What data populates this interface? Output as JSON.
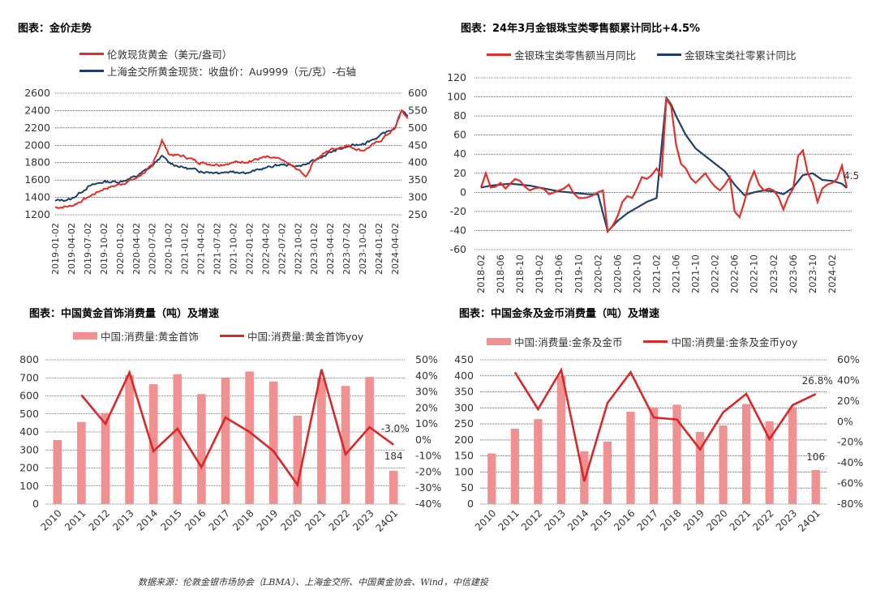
{
  "colors": {
    "red": "#e0302a",
    "blue": "#1f3f6b",
    "bar": "#f09090",
    "barline": "#d8282a",
    "grid": "#000000"
  },
  "footer": "数据来源：伦敦金银市场协会（LBMA）、上海金交所、中国黄金协会、Wind，中信建投",
  "chart_data": [
    {
      "type": "line",
      "title": "图表：金价走势",
      "x_ticks": [
        "2019-01-02",
        "2019-04-02",
        "2019-07-02",
        "2019-10-02",
        "2020-01-02",
        "2020-04-02",
        "2020-07-02",
        "2020-10-02",
        "2021-01-02",
        "2021-04-02",
        "2021-07-02",
        "2021-10-02",
        "2022-01-02",
        "2022-04-02",
        "2022-07-02",
        "2022-10-02",
        "2023-01-02",
        "2023-04-02",
        "2023-07-02",
        "2023-10-02",
        "2024-01-02",
        "2024-04-02"
      ],
      "ylim_left": [
        1200,
        2600
      ],
      "yticks_left": [
        "1200",
        "1400",
        "1600",
        "1800",
        "2000",
        "2200",
        "2400",
        "2600"
      ],
      "ylim_right": [
        250,
        600
      ],
      "yticks_right": [
        "250",
        "300",
        "350",
        "400",
        "450",
        "500",
        "550",
        "600"
      ],
      "series": [
        {
          "name": "伦敦现货黄金（美元/盎司）",
          "axis": "left",
          "color": "#e0302a",
          "x": [
            0,
            1,
            2,
            3,
            4,
            5,
            6,
            6.6,
            7,
            8,
            9,
            10,
            11,
            12,
            13,
            14,
            15,
            15.5,
            16,
            17,
            18,
            19,
            20,
            21,
            21.4,
            21.6,
            21.8
          ],
          "values": [
            1285,
            1300,
            1400,
            1500,
            1550,
            1620,
            1760,
            2060,
            1900,
            1870,
            1800,
            1780,
            1800,
            1820,
            1860,
            1830,
            1720,
            1640,
            1830,
            1950,
            2000,
            1940,
            2040,
            2200,
            2400,
            2350,
            2310
          ]
        },
        {
          "name": "上海金交所黄金现货：收盘价：Au9999（元/克）-右轴",
          "axis": "right",
          "color": "#1f3f6b",
          "x": [
            0,
            1,
            2,
            3,
            4,
            5,
            6,
            6.6,
            7,
            8,
            9,
            10,
            11,
            12,
            13,
            14,
            15,
            15.5,
            16,
            17,
            18,
            19,
            20,
            21,
            21.4,
            21.6,
            21.8
          ],
          "values": [
            290,
            295,
            330,
            345,
            345,
            360,
            390,
            420,
            400,
            385,
            375,
            372,
            375,
            372,
            385,
            395,
            390,
            395,
            405,
            430,
            445,
            455,
            475,
            500,
            550,
            545,
            535
          ]
        }
      ]
    },
    {
      "type": "line",
      "title": "图表：24年3月金银珠宝类零售额累计同比+4.5%",
      "x_ticks": [
        "2018-02",
        "2018-06",
        "2018-10",
        "2019-02",
        "2019-06",
        "2019-10",
        "2020-02",
        "2020-06",
        "2020-10",
        "2021-02",
        "2021-06",
        "2021-10",
        "2022-02",
        "2022-06",
        "2022-10",
        "2023-02",
        "2023-06",
        "2023-10",
        "2024-02"
      ],
      "ylim": [
        -60,
        120
      ],
      "yticks": [
        "-60",
        "-40",
        "-20",
        "0",
        "20",
        "40",
        "60",
        "80",
        "100",
        "120"
      ],
      "annotation": "4.5",
      "series": [
        {
          "name": "金银珠宝类零售额当月同比",
          "color": "#e0302a",
          "x": [
            0,
            1,
            2,
            3,
            4,
            5,
            6,
            7,
            8,
            9,
            10,
            11,
            12,
            13,
            14,
            15,
            16,
            17,
            18,
            19,
            20,
            21,
            22,
            23,
            24,
            25,
            26,
            27,
            28,
            29,
            30,
            31,
            32,
            33,
            34,
            35,
            36,
            37,
            38,
            39,
            40,
            41,
            42,
            43,
            44,
            45,
            46,
            47,
            48,
            49,
            50,
            51,
            52,
            53,
            54,
            55,
            56,
            57,
            58,
            59,
            60,
            61,
            62,
            63,
            64,
            65,
            66,
            67,
            68,
            69,
            70,
            71,
            72,
            73,
            74,
            75
          ],
          "values": [
            5,
            20,
            5,
            6,
            10,
            4,
            9,
            14,
            12,
            6,
            2,
            4,
            5,
            3,
            -2,
            0,
            2,
            4,
            8,
            -1,
            -6,
            -6,
            -5,
            -3,
            0,
            2,
            -41,
            -35,
            -25,
            -10,
            -4,
            -6,
            4,
            16,
            14,
            18,
            25,
            17,
            98,
            90,
            50,
            30,
            25,
            15,
            10,
            15,
            20,
            12,
            6,
            2,
            8,
            16,
            -20,
            -26,
            -10,
            10,
            22,
            8,
            2,
            4,
            2,
            -5,
            -18,
            -5,
            4,
            38,
            44,
            20,
            10,
            -10,
            4,
            8,
            10,
            14,
            28,
            5
          ]
        },
        {
          "name": "金银珠宝类社零累计同比",
          "color": "#1f3f6b",
          "x": [
            0,
            2,
            4,
            6,
            8,
            10,
            12,
            14,
            16,
            18,
            20,
            22,
            24,
            26,
            28,
            30,
            32,
            34,
            36,
            38,
            39,
            40,
            42,
            44,
            46,
            48,
            50,
            52,
            54,
            56,
            58,
            60,
            62,
            64,
            66,
            68,
            70,
            72,
            74,
            75
          ],
          "values": [
            5,
            7,
            8,
            9,
            8,
            7,
            5,
            3,
            1,
            0,
            -1,
            -2,
            -2,
            -41,
            -30,
            -22,
            -16,
            -10,
            -6,
            99,
            92,
            80,
            60,
            46,
            38,
            30,
            22,
            8,
            -3,
            0,
            2,
            1,
            -2,
            5,
            18,
            20,
            13,
            12,
            9,
            4.5
          ]
        }
      ]
    },
    {
      "type": "bar",
      "title": "图表：中国黄金首饰消费量（吨）及增速",
      "categories": [
        "2010",
        "2011",
        "2012",
        "2013",
        "2014",
        "2015",
        "2016",
        "2017",
        "2018",
        "2019",
        "2020",
        "2021",
        "2022",
        "2023",
        "24Q1"
      ],
      "ylim_left": [
        0,
        800
      ],
      "yticks_left": [
        "0",
        "100",
        "200",
        "300",
        "400",
        "500",
        "600",
        "700",
        "800"
      ],
      "ylim_right": [
        -40,
        50
      ],
      "yticks_right": [
        "-40%",
        "-30%",
        "-20%",
        "-10%",
        "0%",
        "10%",
        "20%",
        "30%",
        "40%",
        "50%"
      ],
      "series": [
        {
          "name": "中国:消费量:黄金首饰",
          "type": "bar",
          "axis": "left",
          "values": [
            355,
            455,
            505,
            715,
            665,
            720,
            610,
            700,
            735,
            680,
            490,
            700,
            655,
            705,
            184
          ]
        },
        {
          "name": "中国:消费量:黄金首饰yoy",
          "type": "line",
          "axis": "right",
          "values": [
            null,
            28,
            10,
            42,
            -7,
            7,
            -17,
            14,
            5,
            -7,
            -28,
            44,
            -9,
            8,
            -3
          ]
        }
      ],
      "labels": {
        "last_bar": "184",
        "last_yoy": "-3.0%"
      }
    },
    {
      "type": "bar",
      "title": "图表：中国金条及金币消费量（吨）及增速",
      "categories": [
        "2010",
        "2011",
        "2012",
        "2013",
        "2014",
        "2015",
        "2016",
        "2017",
        "2018",
        "2019",
        "2020",
        "2021",
        "2022",
        "2023",
        "24Q1"
      ],
      "ylim_left": [
        0,
        450
      ],
      "yticks_left": [
        "0",
        "50",
        "100",
        "150",
        "200",
        "250",
        "300",
        "350",
        "400",
        "450"
      ],
      "ylim_right": [
        -80,
        60
      ],
      "yticks_right": [
        "-80%",
        "-60%",
        "-40%",
        "-20%",
        "0%",
        "20%",
        "40%",
        "60%"
      ],
      "series": [
        {
          "name": "中国:消费量:金条及金币",
          "type": "bar",
          "axis": "left",
          "values": [
            158,
            235,
            265,
            400,
            165,
            195,
            288,
            302,
            310,
            225,
            245,
            312,
            258,
            302,
            106
          ]
        },
        {
          "name": "中国:消费量:金条及金币yoy",
          "type": "line",
          "axis": "right",
          "values": [
            null,
            48,
            12,
            50,
            -58,
            18,
            48,
            4,
            2,
            -27,
            9,
            27,
            -17,
            16,
            26.8
          ]
        }
      ],
      "labels": {
        "last_bar": "106",
        "last_yoy": "26.8%"
      }
    }
  ]
}
